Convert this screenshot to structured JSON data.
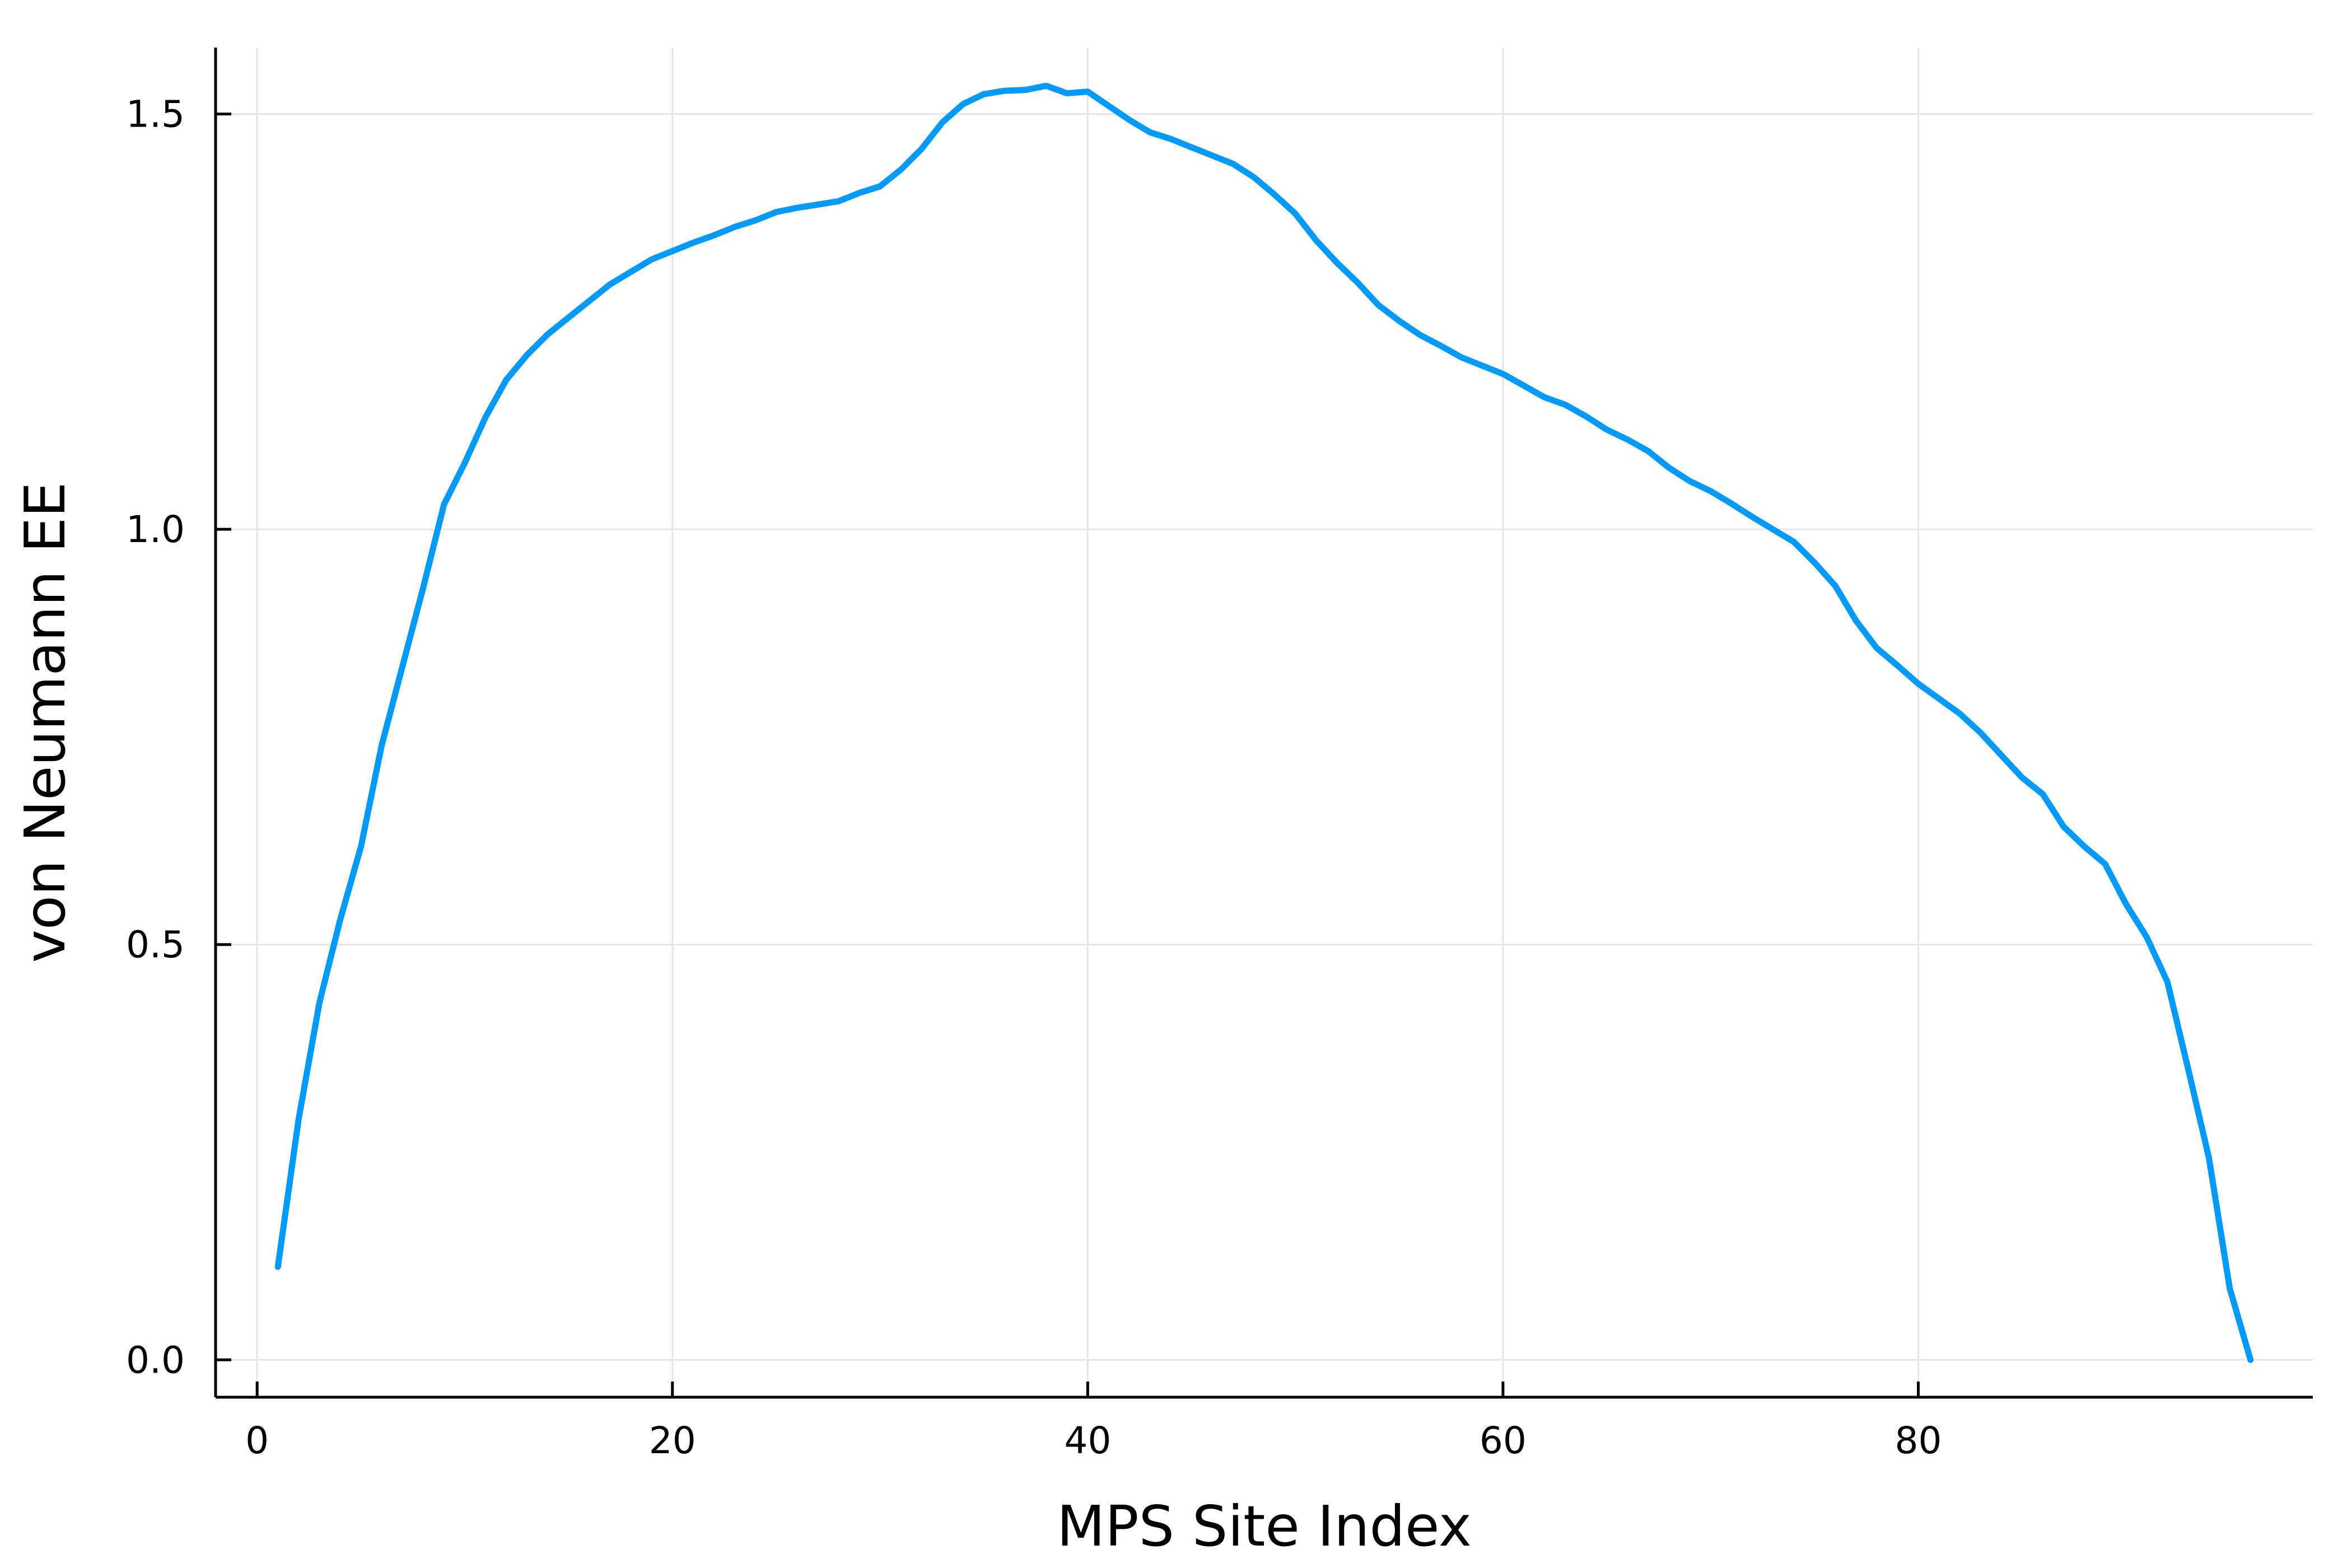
{
  "chart_data": {
    "type": "line",
    "title": "",
    "xlabel": "MPS Site Index",
    "ylabel": "von Neumann EE",
    "xlim": [
      -2,
      99
    ],
    "ylim": [
      -0.045,
      1.58
    ],
    "x_ticks": [
      0,
      20,
      40,
      60,
      80
    ],
    "x_tick_labels": [
      "0",
      "20",
      "40",
      "60",
      "80"
    ],
    "y_ticks": [
      0.0,
      0.5,
      1.0,
      1.5
    ],
    "y_tick_labels": [
      "0.0",
      "0.5",
      "1.0",
      "1.5"
    ],
    "grid": true,
    "legend": "none",
    "colors": {
      "series": "#009AFA",
      "grid": "#E6E6E6",
      "axis": "#000000"
    },
    "series": [
      {
        "x": [
          1,
          2,
          3,
          4,
          5,
          6,
          7,
          8,
          9,
          10,
          11,
          12,
          13,
          14,
          15,
          16,
          17,
          18,
          19,
          20,
          21,
          22,
          23,
          24,
          25,
          26,
          27,
          28,
          29,
          30,
          31,
          32,
          33,
          34,
          35,
          36,
          37,
          38,
          39,
          40,
          41,
          42,
          43,
          44,
          45,
          46,
          47,
          48,
          49,
          50,
          51,
          52,
          53,
          54,
          55,
          56,
          57,
          58,
          59,
          60,
          61,
          62,
          63,
          64,
          65,
          66,
          67,
          68,
          69,
          70,
          71,
          72,
          73,
          74,
          75,
          76,
          77,
          78,
          79,
          80,
          81,
          82,
          83,
          84,
          85,
          86,
          87,
          88,
          89,
          90,
          91,
          92,
          93,
          94,
          95,
          96
        ],
        "values": [
          0.112,
          0.29,
          0.43,
          0.53,
          0.618,
          0.74,
          0.835,
          0.93,
          1.03,
          1.08,
          1.135,
          1.18,
          1.21,
          1.235,
          1.255,
          1.275,
          1.295,
          1.31,
          1.325,
          1.335,
          1.345,
          1.354,
          1.364,
          1.372,
          1.382,
          1.387,
          1.391,
          1.395,
          1.405,
          1.413,
          1.433,
          1.458,
          1.49,
          1.512,
          1.524,
          1.528,
          1.529,
          1.534,
          1.525,
          1.527,
          1.51,
          1.493,
          1.478,
          1.47,
          1.46,
          1.45,
          1.44,
          1.424,
          1.403,
          1.38,
          1.348,
          1.321,
          1.297,
          1.27,
          1.251,
          1.234,
          1.221,
          1.207,
          1.197,
          1.187,
          1.173,
          1.159,
          1.15,
          1.136,
          1.12,
          1.108,
          1.094,
          1.074,
          1.058,
          1.046,
          1.031,
          1.015,
          1.0,
          0.985,
          0.96,
          0.932,
          0.89,
          0.857,
          0.836,
          0.814,
          0.796,
          0.778,
          0.755,
          0.728,
          0.701,
          0.681,
          0.642,
          0.618,
          0.597,
          0.549,
          0.509,
          0.455,
          0.35,
          0.243,
          0.086,
          0.0
        ]
      }
    ]
  }
}
